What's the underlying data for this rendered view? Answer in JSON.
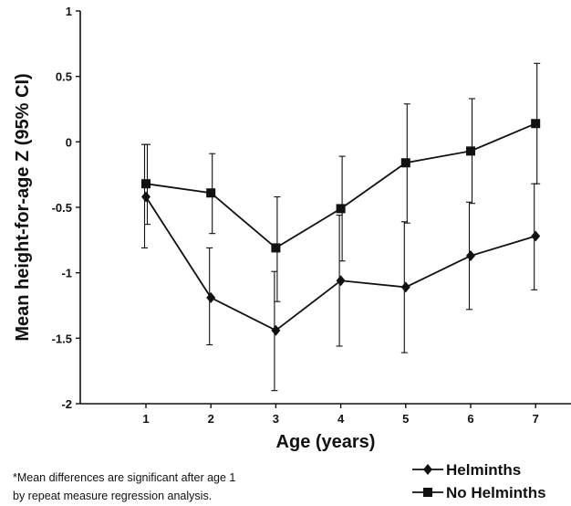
{
  "chart_data": {
    "type": "line",
    "xlabel": "Age (years)",
    "ylabel": "Mean height-for-age Z (95% CI)",
    "x": [
      1,
      2,
      3,
      4,
      5,
      6,
      7
    ],
    "xlim": [
      0.5,
      7.5
    ],
    "ylim": [
      -2,
      1
    ],
    "x_ticks": [
      "1",
      "2",
      "3",
      "4",
      "5",
      "6",
      "7"
    ],
    "y_ticks": [
      {
        "value": 1,
        "label": "1"
      },
      {
        "value": 0.5,
        "label": "0.5"
      },
      {
        "value": 0,
        "label": "0"
      },
      {
        "value": -0.5,
        "label": "-0.5"
      },
      {
        "value": -1,
        "label": "-1"
      },
      {
        "value": -1.5,
        "label": "-1.5"
      },
      {
        "value": -2,
        "label": "-2"
      }
    ],
    "grid": false,
    "legend_position": "bottom-right",
    "series": [
      {
        "name": "Helminths",
        "marker": "diamond",
        "color": "#111111",
        "values": [
          -0.42,
          -1.19,
          -1.44,
          -1.06,
          -1.11,
          -0.87,
          -0.72
        ],
        "ci_low": [
          -0.81,
          -1.55,
          -1.9,
          -1.56,
          -1.61,
          -1.28,
          -1.13
        ],
        "ci_high": [
          -0.02,
          -0.81,
          -0.99,
          -0.56,
          -0.61,
          -0.46,
          -0.32
        ]
      },
      {
        "name": "No Helminths",
        "marker": "square",
        "color": "#111111",
        "values": [
          -0.32,
          -0.39,
          -0.81,
          -0.51,
          -0.16,
          -0.07,
          0.14
        ],
        "ci_low": [
          -0.63,
          -0.7,
          -1.22,
          -0.91,
          -0.62,
          -0.47,
          -0.32
        ],
        "ci_high": [
          -0.02,
          -0.09,
          -0.42,
          -0.11,
          0.29,
          0.33,
          0.6
        ]
      }
    ]
  },
  "footnote": {
    "line1": "*Mean differences are significant after age 1",
    "line2": "by repeat measure regression analysis."
  }
}
